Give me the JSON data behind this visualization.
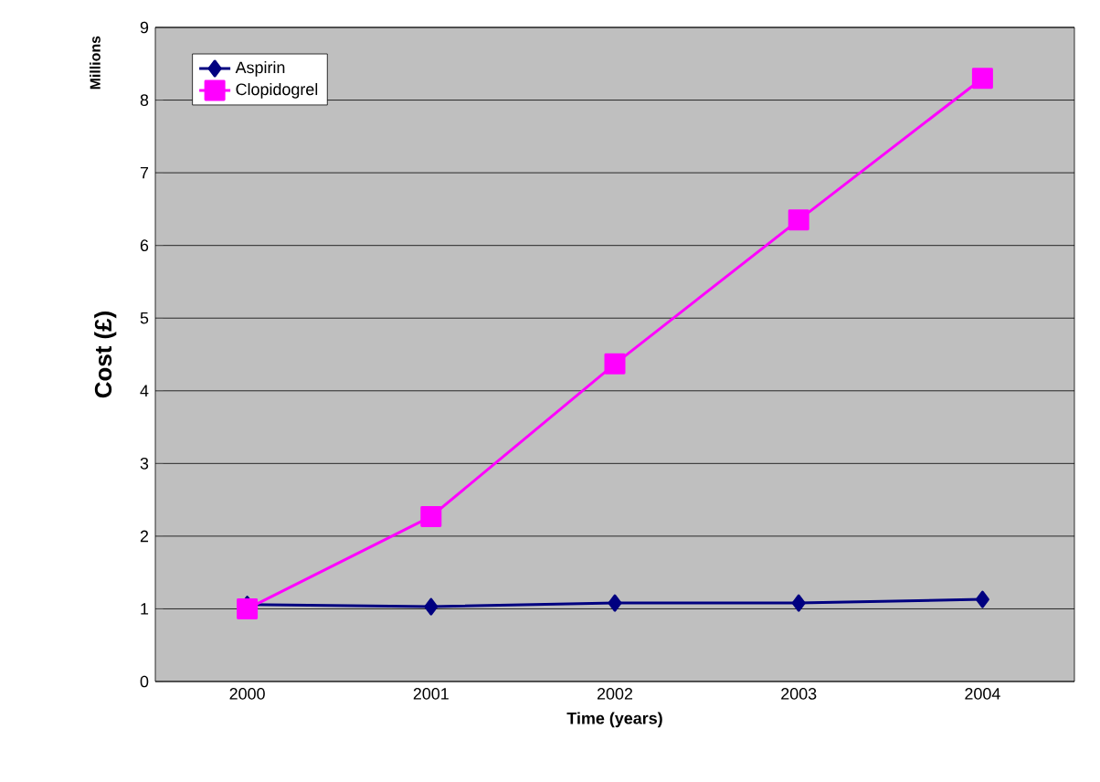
{
  "chart_data": {
    "type": "line",
    "xlabel": "Time (years)",
    "ylabel": "Cost (£)",
    "annotations": [
      "Millions"
    ],
    "categories": [
      "2000",
      "2001",
      "2002",
      "2003",
      "2004"
    ],
    "series": [
      {
        "name": "Aspirin",
        "color": "#000080",
        "marker": "diamond",
        "values": [
          1.06,
          1.03,
          1.08,
          1.08,
          1.13
        ]
      },
      {
        "name": "Clopidogrel",
        "color": "#ff00ff",
        "marker": "square",
        "values": [
          1.0,
          2.27,
          4.37,
          6.35,
          8.3
        ]
      }
    ],
    "ylim": [
      0,
      9
    ],
    "yticks": [
      0,
      1,
      2,
      3,
      4,
      5,
      6,
      7,
      8,
      9
    ],
    "grid": "y",
    "legend": "top left"
  }
}
